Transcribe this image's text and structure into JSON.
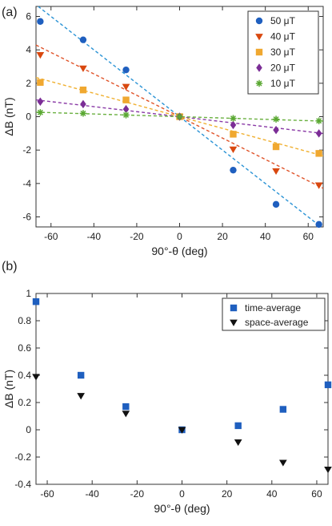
{
  "chart_data": [
    {
      "type": "scatter",
      "panel_label": "(a)",
      "xlabel": "90°-θ (deg)",
      "ylabel": "ΔB (nT)",
      "xlim": [
        -67,
        67
      ],
      "ylim": [
        -6.6,
        6.6
      ],
      "xticks": [
        -60,
        -40,
        -20,
        0,
        20,
        40,
        60
      ],
      "yticks": [
        -6,
        -4,
        -2,
        0,
        2,
        4,
        6
      ],
      "grid": false,
      "legend_position": "top-right",
      "x": [
        -65,
        -45,
        -25,
        0,
        25,
        45,
        65
      ],
      "series": [
        {
          "name": "50 μT",
          "color": "#1f5fbf",
          "marker": "circle",
          "fit_color": "#2a93d5",
          "fit_slope": -0.1,
          "values": [
            5.7,
            4.6,
            2.8,
            0.0,
            -3.2,
            -5.25,
            -6.45
          ]
        },
        {
          "name": "40 μT",
          "color": "#d9480f",
          "marker": "triangle-down",
          "fit_color": "#e0542a",
          "fit_slope": -0.064,
          "values": [
            3.7,
            2.9,
            1.8,
            0.0,
            -1.95,
            -3.25,
            -4.1
          ]
        },
        {
          "name": "30 μT",
          "color": "#f0a830",
          "marker": "square",
          "fit_color": "#f0b030",
          "fit_slope": -0.035,
          "values": [
            2.05,
            1.6,
            1.0,
            0.0,
            -1.05,
            -1.8,
            -2.2
          ]
        },
        {
          "name": "20 μT",
          "color": "#7b2d96",
          "marker": "diamond",
          "fit_color": "#8a3aa6",
          "fit_slope": -0.015,
          "values": [
            0.9,
            0.75,
            0.45,
            0.0,
            -0.5,
            -0.8,
            -1.0
          ]
        },
        {
          "name": "10 μT",
          "color": "#5aa832",
          "marker": "star",
          "fit_color": "#6ab040",
          "fit_slope": -0.004,
          "values": [
            0.25,
            0.2,
            0.1,
            0.0,
            -0.1,
            -0.15,
            -0.25
          ]
        }
      ]
    },
    {
      "type": "scatter",
      "panel_label": "(b)",
      "xlabel": "90°-θ (deg)",
      "ylabel": "ΔB (nT)",
      "xlim": [
        -65,
        65
      ],
      "ylim": [
        -0.4,
        1.0
      ],
      "xticks": [
        -60,
        -40,
        -20,
        0,
        20,
        40,
        60
      ],
      "yticks": [
        -0.4,
        -0.2,
        0,
        0.2,
        0.4,
        0.6,
        0.8,
        1
      ],
      "grid": false,
      "legend_position": "top-right",
      "x": [
        -65,
        -45,
        -25,
        0,
        25,
        45,
        65
      ],
      "series": [
        {
          "name": "time-average",
          "color": "#1f5fbf",
          "marker": "square",
          "values": [
            0.94,
            0.4,
            0.17,
            0.0,
            0.03,
            0.15,
            0.33
          ]
        },
        {
          "name": "space-average",
          "color": "#111111",
          "marker": "triangle-down",
          "values": [
            0.39,
            0.25,
            0.12,
            0.0,
            -0.09,
            -0.24,
            -0.29
          ]
        }
      ]
    }
  ]
}
